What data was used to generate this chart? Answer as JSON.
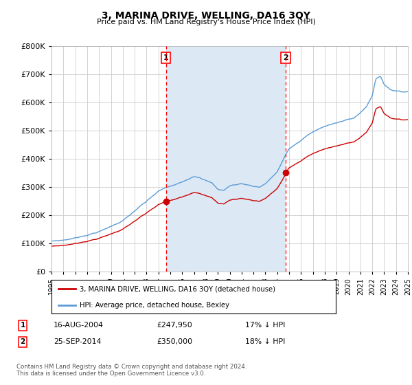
{
  "title": "3, MARINA DRIVE, WELLING, DA16 3QY",
  "subtitle": "Price paid vs. HM Land Registry's House Price Index (HPI)",
  "hpi_label": "HPI: Average price, detached house, Bexley",
  "price_label": "3, MARINA DRIVE, WELLING, DA16 3QY (detached house)",
  "plot_bg_color": "#ffffff",
  "shade_color": "#dce9f5",
  "hpi_color": "#5b9bd5",
  "price_color": "#cc0000",
  "grid_color": "#cccccc",
  "sale1_date": "16-AUG-2004",
  "sale1_price": 247950,
  "sale1_price_fmt": "£247,950",
  "sale1_hpi": "17% ↓ HPI",
  "sale2_date": "25-SEP-2014",
  "sale2_price": 350000,
  "sale2_price_fmt": "£350,000",
  "sale2_hpi": "18% ↓ HPI",
  "ylim": [
    0,
    800000
  ],
  "xmin": 1995,
  "xmax": 2025,
  "footer": "Contains HM Land Registry data © Crown copyright and database right 2024.\nThis data is licensed under the Open Government Licence v3.0."
}
